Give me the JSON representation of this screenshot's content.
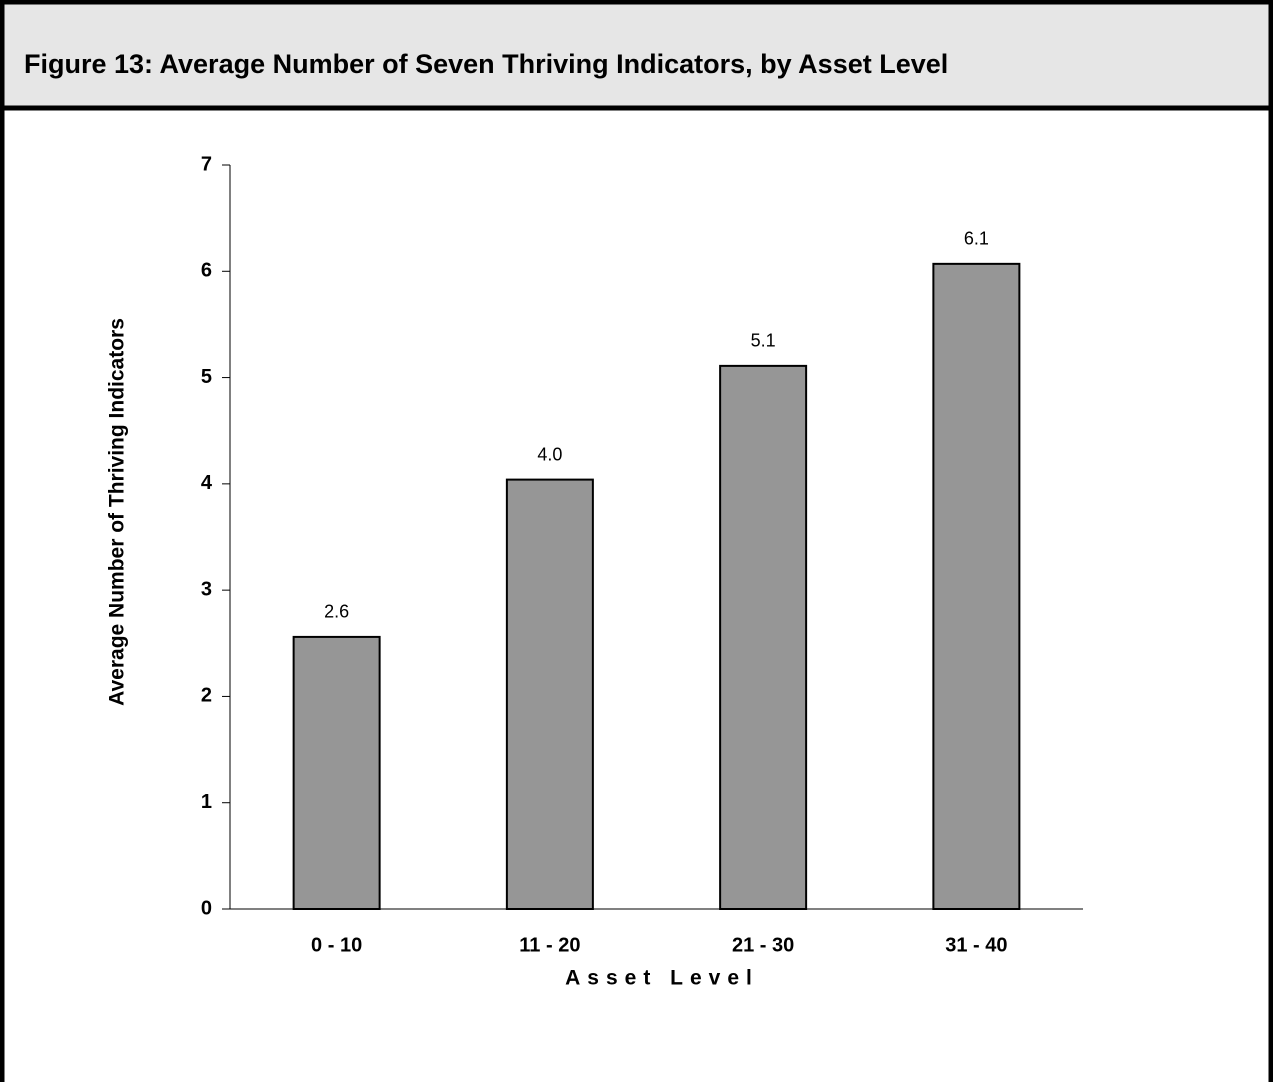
{
  "chart_data": {
    "type": "bar",
    "title": "Figure 13: Average Number of Seven Thriving Indicators, by Asset Level",
    "x_label": "Asset Level",
    "y_label": "Average Number of Thriving Indicators",
    "categories": [
      "0 - 10",
      "11 - 20",
      "21 - 30",
      "31 - 40"
    ],
    "values": [
      2.56,
      4.04,
      5.11,
      6.07
    ],
    "value_labels": [
      "2.6",
      "4.0",
      "5.1",
      "6.1"
    ],
    "color": "#969696",
    "ylim": [
      0,
      7
    ],
    "yticks": [
      0,
      1,
      2,
      3,
      4,
      5,
      6,
      7
    ],
    "grid": false
  }
}
